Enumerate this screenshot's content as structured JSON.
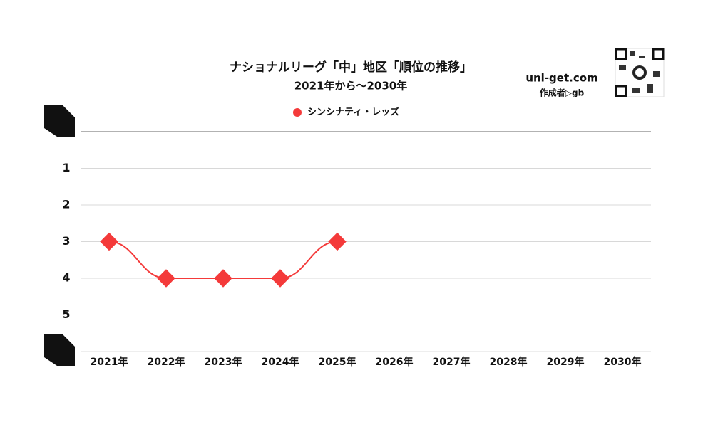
{
  "chart_data": {
    "type": "line",
    "title": "ナショナルリーグ「中」地区「順位の推移」",
    "subtitle": "2021年から～2030年",
    "brand": "uni-get.com",
    "author": "作成者▷gb",
    "categories": [
      "2021年",
      "2022年",
      "2023年",
      "2024年",
      "2025年",
      "2026年",
      "2027年",
      "2028年",
      "2029年",
      "2030年"
    ],
    "series": [
      {
        "name": "シンシナティ・レッズ",
        "color": "#f43a3a",
        "values": [
          3,
          4,
          4,
          4,
          3,
          null,
          null,
          null,
          null,
          null
        ]
      }
    ],
    "ylim": [
      0,
      6
    ],
    "yticks": [
      1,
      2,
      3,
      4,
      5
    ],
    "y_inverted": true,
    "grid": true,
    "smooth": true,
    "legend": "top"
  }
}
